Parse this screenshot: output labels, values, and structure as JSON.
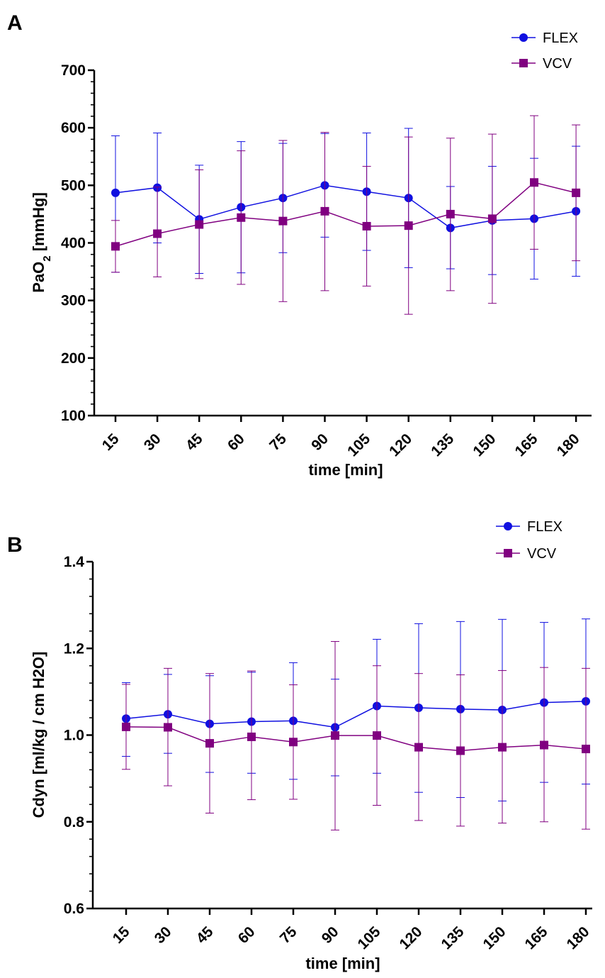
{
  "chart_data": [
    {
      "type": "line",
      "panel_label": "A",
      "xlabel": "time [min]",
      "ylabel_main": "PaO",
      "ylabel_sub": "2",
      "ylabel_unit": " [mmHg]",
      "ylim": [
        100,
        700
      ],
      "yticks": [
        100,
        200,
        300,
        400,
        500,
        600,
        700
      ],
      "ytick_labels": [
        "100",
        "200",
        "300",
        "400",
        "500",
        "600",
        "700"
      ],
      "categories": [
        "15",
        "30",
        "45",
        "60",
        "75",
        "90",
        "105",
        "120",
        "135",
        "150",
        "165",
        "180"
      ],
      "legend_position": "top-right",
      "series": [
        {
          "name": "FLEX",
          "marker": "circle",
          "color": "#1010e0",
          "values": [
            487,
            496,
            441,
            462,
            478,
            500,
            489,
            478,
            426,
            439,
            442,
            455
          ],
          "err_low": [
            349,
            400,
            347,
            348,
            383,
            410,
            387,
            357,
            355,
            345,
            337,
            342
          ],
          "err_high": [
            586,
            591,
            535,
            576,
            573,
            590,
            591,
            599,
            498,
            533,
            547,
            568
          ]
        },
        {
          "name": "VCV",
          "marker": "square",
          "color": "#800080",
          "values": [
            394,
            416,
            432,
            444,
            438,
            455,
            429,
            430,
            450,
            442,
            505,
            487
          ],
          "err_low": [
            349,
            341,
            338,
            328,
            298,
            317,
            325,
            276,
            317,
            295,
            389,
            369
          ],
          "err_high": [
            439,
            497,
            527,
            560,
            578,
            592,
            533,
            584,
            582,
            589,
            621,
            605
          ]
        }
      ]
    },
    {
      "type": "line",
      "panel_label": "B",
      "xlabel": "time [min]",
      "ylabel": "Cdyn [ml/kg / cm H2O]",
      "ylim": [
        0.6,
        1.4
      ],
      "yticks": [
        0.6,
        0.8,
        1.0,
        1.2,
        1.4
      ],
      "ytick_labels": [
        "0.6",
        "0.8",
        "1.0",
        "1.2",
        "1.4"
      ],
      "categories": [
        "15",
        "30",
        "45",
        "60",
        "75",
        "90",
        "105",
        "120",
        "135",
        "150",
        "165",
        "180"
      ],
      "legend_position": "top-right",
      "series": [
        {
          "name": "FLEX",
          "marker": "circle",
          "color": "#1010e0",
          "values": [
            1.038,
            1.048,
            1.026,
            1.031,
            1.033,
            1.018,
            1.067,
            1.063,
            1.06,
            1.058,
            1.075,
            1.078
          ],
          "err_low": [
            0.951,
            0.958,
            0.914,
            0.912,
            0.898,
            0.906,
            0.912,
            0.868,
            0.856,
            0.848,
            0.891,
            0.887
          ],
          "err_high": [
            1.121,
            1.14,
            1.137,
            1.145,
            1.167,
            1.129,
            1.221,
            1.257,
            1.262,
            1.267,
            1.26,
            1.268
          ]
        },
        {
          "name": "VCV",
          "marker": "square",
          "color": "#800080",
          "values": [
            1.019,
            1.018,
            0.981,
            0.996,
            0.984,
            0.999,
            0.999,
            0.972,
            0.964,
            0.972,
            0.977,
            0.968
          ],
          "err_low": [
            0.921,
            0.883,
            0.82,
            0.851,
            0.852,
            0.781,
            0.838,
            0.803,
            0.79,
            0.797,
            0.8,
            0.783
          ],
          "err_high": [
            1.117,
            1.154,
            1.142,
            1.148,
            1.116,
            1.216,
            1.16,
            1.142,
            1.139,
            1.149,
            1.156,
            1.154
          ]
        }
      ]
    }
  ]
}
